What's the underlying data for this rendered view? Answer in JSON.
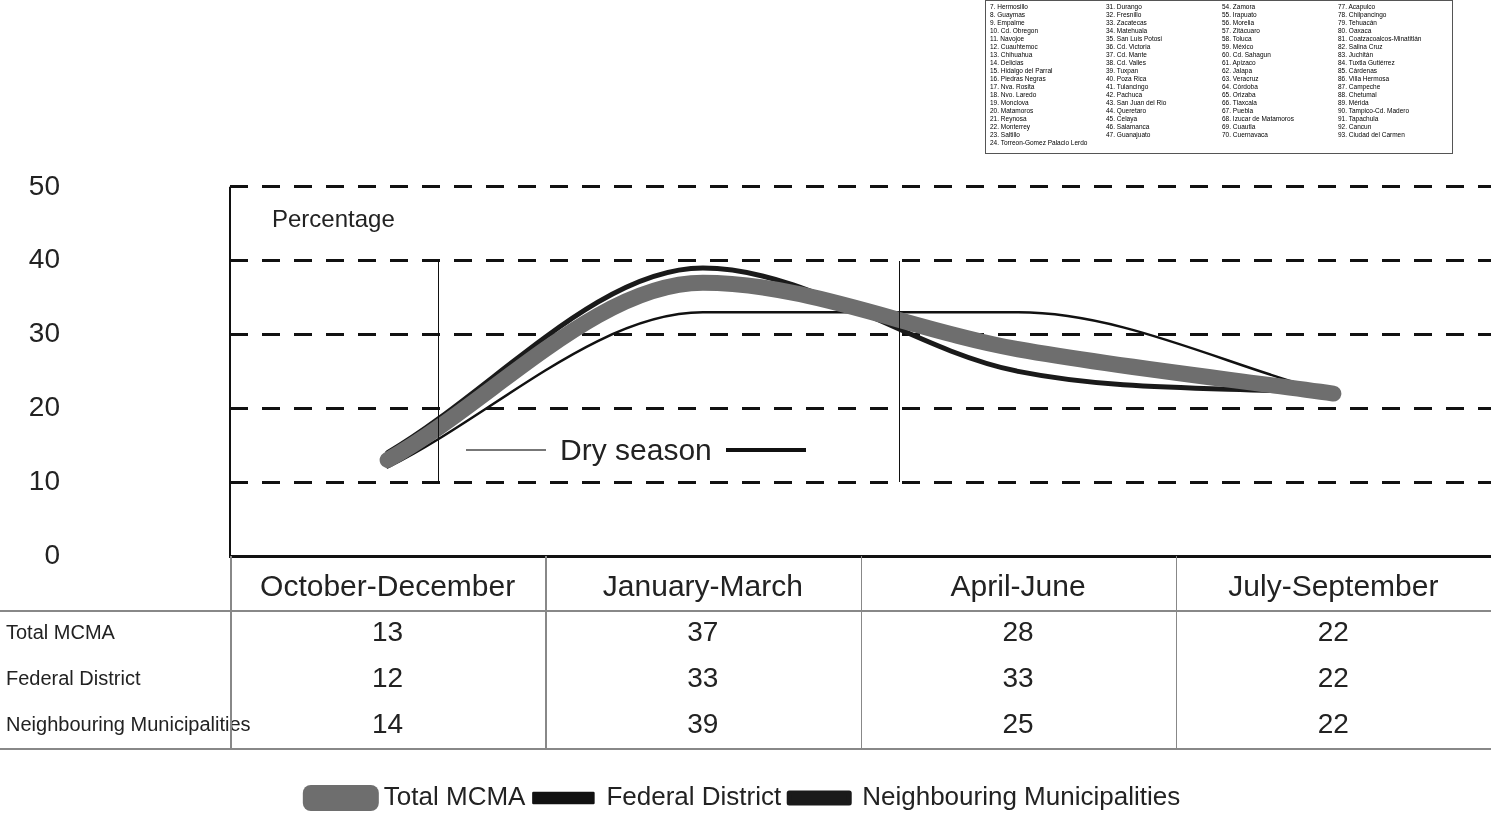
{
  "chart_data": {
    "type": "line",
    "ylabel": "Percentage",
    "categories": [
      "October-December",
      "January-March",
      "April-June",
      "July-September"
    ],
    "series": [
      {
        "name": "Total MCMA",
        "color": "#6e6e6e",
        "values": [
          13,
          37,
          28,
          22
        ]
      },
      {
        "name": "Federal District",
        "color": "#111111",
        "values": [
          12,
          33,
          33,
          22
        ]
      },
      {
        "name": "Neighbouring Municipalities",
        "color": "#1a1a1a",
        "values": [
          14,
          39,
          25,
          22
        ]
      }
    ],
    "ylim": [
      0,
      50
    ],
    "yticks": [
      0,
      10,
      20,
      30,
      40,
      50
    ],
    "grid": "y",
    "legend": "bottom",
    "data_labels": true,
    "marker": "none",
    "annotations": [
      "Dry season",
      "7. Hermosillo",
      "8. Guaymas",
      "9. Empalme",
      "10. Cd. Obregon",
      "11. Navojoe",
      "12. Cuauhtemoc",
      "13. Chihuahua",
      "14. Delicias",
      "15. Hidalgo del Parral",
      "16. Piedras Negras",
      "17. Nva. Rosita",
      "18. Nvo. Laredo",
      "19. Monclova",
      "20. Matamoros",
      "21. Reynosa",
      "22. Monterrey",
      "23. Saltillo",
      "24. Torreon-Gomez Palacio Lerdo",
      "31. Durango",
      "32. Fresnillo",
      "33. Zacatecas",
      "34. Matehuala",
      "35. San Luis Potosi",
      "36. Cd. Victoria",
      "37. Cd. Mante",
      "38. Cd. Valles",
      "39. Tuxpan",
      "40. Poza Rica",
      "41. Tulancingo",
      "42. Pachuca",
      "43. San Juan del Rio",
      "44. Queretaro",
      "45. Celaya",
      "46. Salamanca",
      "47. Guanajuato",
      "54. Zamora",
      "55. Irapuato",
      "56. Morelia",
      "57. Zitácuaro",
      "58. Toluca",
      "59. México",
      "60. Cd. Sahagun",
      "61. Apizaco",
      "62. Jalapa",
      "63. Veracruz",
      "64. Córdoba",
      "65. Orizaba",
      "66. Tlaxcala",
      "67. Puebla",
      "68. Izucar de Matamoros",
      "69. Cuautla",
      "70. Cuernavaca",
      "77. Acapulco",
      "78. Chilpancingo",
      "79. Tehuacán",
      "80. Oaxaca",
      "81. Coatzacoalcos-Minatitlán",
      "82. Salina Cruz",
      "83. Juchitán",
      "84. Tuxtla Gutiérrez",
      "85. Cárdenas",
      "86. Villa Hermosa",
      "87. Campeche",
      "88. Chetumal",
      "89. Mérida",
      "90. Tampico-Cd. Madero",
      "91. Tapachula",
      "92. Cancun",
      "93. Ciudad del Carmen"
    ]
  }
}
